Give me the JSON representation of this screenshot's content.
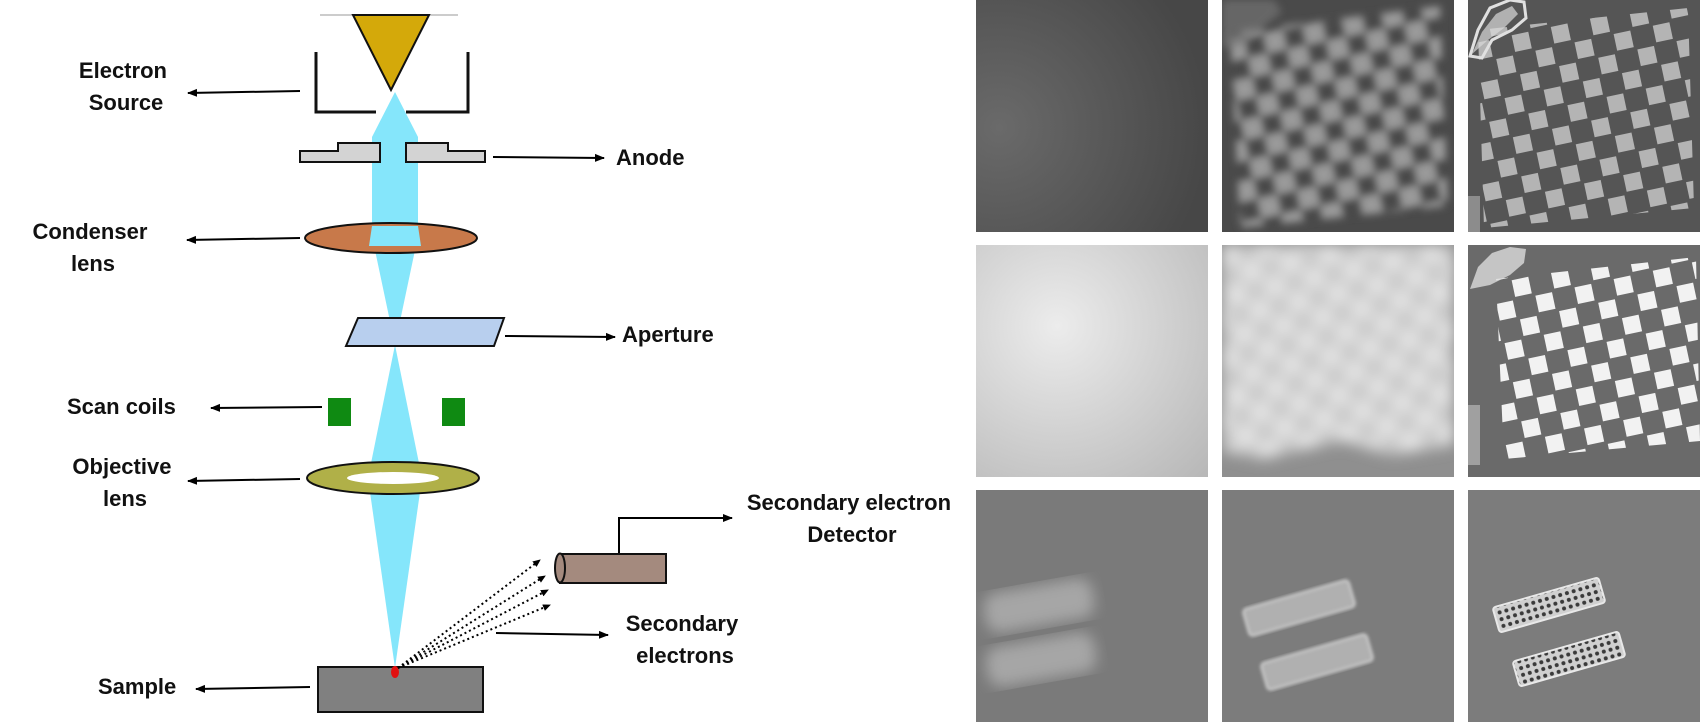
{
  "labels": {
    "electron_source": [
      "Electron",
      "Source"
    ],
    "anode": "Anode",
    "condenser_lens": [
      "Condenser",
      "lens"
    ],
    "aperture": "Aperture",
    "scan_coils": "Scan coils",
    "objective_lens": [
      "Objective",
      "lens"
    ],
    "detector": [
      "Secondary electron",
      "Detector"
    ],
    "secondary_electrons": [
      "Secondary",
      "electrons"
    ],
    "sample": "Sample"
  },
  "colors": {
    "beam": "#85e6fb",
    "source_tip": "#d4a90a",
    "anode_plate": "#d3d3d3",
    "condenser_lens": "#c8794a",
    "aperture_plate": "#b8cfee",
    "scan_coil": "#0f8a12",
    "objective_lens": "#b0b048",
    "detector": "#a48a7e",
    "sample": "#808080",
    "spot": "#e01010"
  },
  "image_grid": {
    "rows": 3,
    "columns": 3,
    "description_icons": [
      [
        "blank-blurred-tile",
        "blurred-checkerboard-tile",
        "sharp-checkerboard-tile"
      ],
      [
        "bright-blank-tile",
        "very-blurred-checkerboard-tile",
        "sharp-bright-checkerboard-tile"
      ],
      [
        "blurred-bars-tile",
        "moderately-sharp-bars-tile",
        "sharp-bars-tile"
      ]
    ]
  }
}
